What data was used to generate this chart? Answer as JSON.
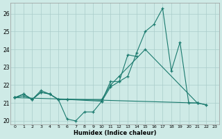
{
  "xlabel": "Humidex (Indice chaleur)",
  "bg_color": "#ceeae6",
  "grid_color": "#aaccca",
  "line_color": "#1a7a6e",
  "xlim": [
    -0.5,
    23.5
  ],
  "ylim": [
    19.8,
    26.6
  ],
  "yticks": [
    20,
    21,
    22,
    23,
    24,
    25,
    26
  ],
  "xticks": [
    0,
    1,
    2,
    3,
    4,
    5,
    6,
    7,
    8,
    9,
    10,
    11,
    12,
    13,
    14,
    15,
    16,
    17,
    18,
    19,
    20,
    21,
    22,
    23
  ],
  "lines": [
    [
      0,
      21.3,
      1,
      21.5,
      2,
      21.2,
      3,
      21.7,
      4,
      21.5,
      5,
      21.2,
      6,
      20.1,
      7,
      20.0,
      8,
      20.5,
      9,
      20.5,
      10,
      21.1,
      11,
      21.9,
      12,
      22.2,
      13,
      22.5,
      14,
      23.8,
      15,
      25.0,
      16,
      25.4,
      17,
      26.3,
      18,
      22.8,
      19,
      24.4,
      20,
      21.0,
      21,
      21.0,
      22,
      20.9
    ],
    [
      0,
      21.3,
      1,
      21.5,
      2,
      21.2,
      3,
      21.6,
      4,
      21.5,
      5,
      21.2,
      6,
      21.2,
      10,
      21.1,
      11,
      22.2,
      12,
      22.2,
      13,
      23.7,
      14,
      23.6
    ],
    [
      0,
      21.3,
      1,
      21.4,
      2,
      21.2,
      3,
      21.6,
      4,
      21.5,
      5,
      21.2,
      6,
      21.2,
      10,
      21.2,
      11,
      22.0,
      12,
      22.5,
      15,
      24.0,
      21,
      21.0
    ],
    [
      0,
      21.3,
      21,
      21.0,
      22,
      20.9
    ]
  ]
}
